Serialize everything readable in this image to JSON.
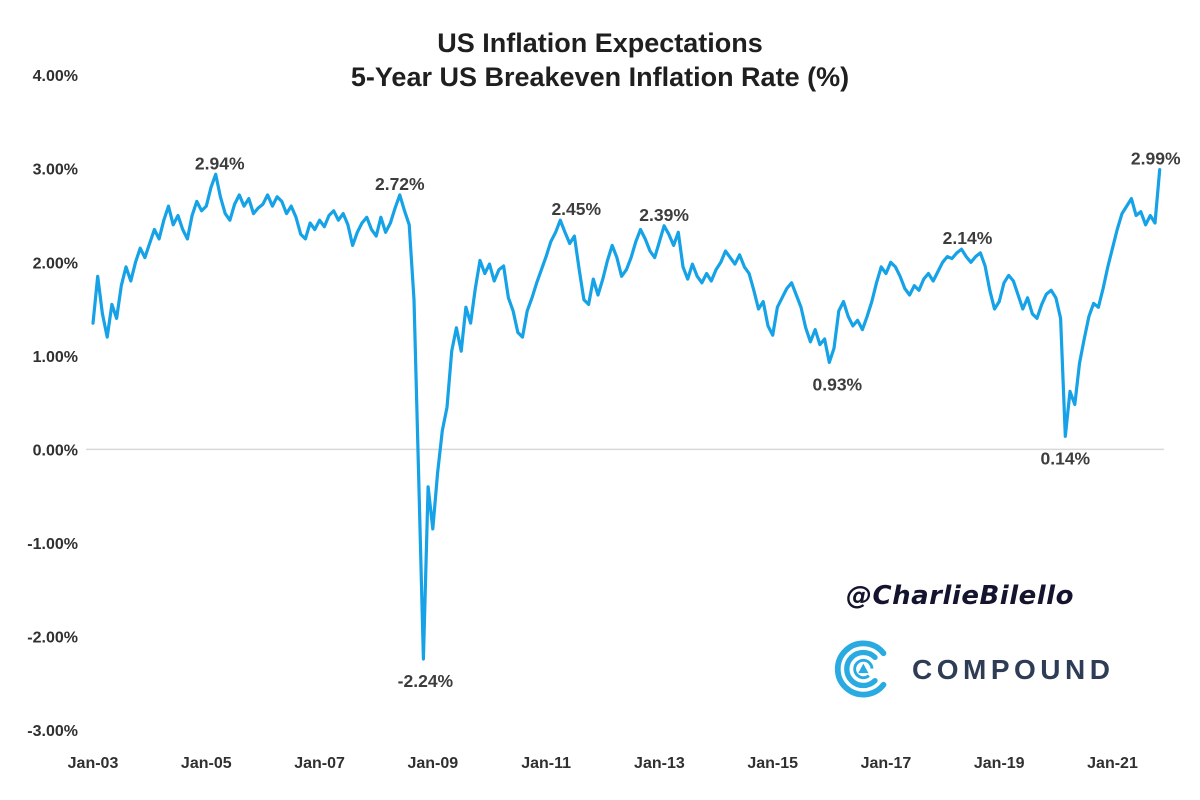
{
  "title": {
    "line1": "US Inflation Expectations",
    "line2": "5-Year US Breakeven Inflation Rate (%)"
  },
  "watermark": "@CharlieBilello",
  "logo": {
    "text": "COMPOUND"
  },
  "colors": {
    "line": "#16a2e6",
    "grid": "#d9d9d9",
    "axis_text": "#303030",
    "annotation_text": "#3d3d3d",
    "title_text": "#1f1f1f",
    "logo_blue": "#29abe2",
    "logo_navy": "#2e3d55",
    "watermark_text": "#14142e"
  },
  "chart_data": {
    "type": "line",
    "title": "US Inflation Expectations",
    "subtitle": "5-Year US Breakeven Inflation Rate (%)",
    "series_name": "5-Year US Breakeven Inflation Rate",
    "x_start": "Jan-2003",
    "x_end": "Nov-2021",
    "x_frequency": "monthly",
    "ylim": [
      -3,
      4
    ],
    "grid": "zero-line-only",
    "legend": "none",
    "x_tick_labels": [
      {
        "label": "Jan-03",
        "month_index": 0
      },
      {
        "label": "Jan-05",
        "month_index": 24
      },
      {
        "label": "Jan-07",
        "month_index": 48
      },
      {
        "label": "Jan-09",
        "month_index": 72
      },
      {
        "label": "Jan-11",
        "month_index": 96
      },
      {
        "label": "Jan-13",
        "month_index": 120
      },
      {
        "label": "Jan-15",
        "month_index": 144
      },
      {
        "label": "Jan-17",
        "month_index": 168
      },
      {
        "label": "Jan-19",
        "month_index": 192
      },
      {
        "label": "Jan-21",
        "month_index": 216
      }
    ],
    "y_ticks": [
      {
        "label": "4.00%",
        "value": 4
      },
      {
        "label": "3.00%",
        "value": 3
      },
      {
        "label": "2.00%",
        "value": 2
      },
      {
        "label": "1.00%",
        "value": 1
      },
      {
        "label": "0.00%",
        "value": 0
      },
      {
        "label": "-1.00%",
        "value": -1
      },
      {
        "label": "-2.00%",
        "value": -2
      },
      {
        "label": "-3.00%",
        "value": -3
      }
    ],
    "values": [
      1.35,
      1.85,
      1.45,
      1.2,
      1.55,
      1.4,
      1.75,
      1.95,
      1.8,
      2.0,
      2.15,
      2.05,
      2.2,
      2.35,
      2.25,
      2.45,
      2.6,
      2.4,
      2.5,
      2.35,
      2.25,
      2.5,
      2.65,
      2.55,
      2.6,
      2.8,
      2.94,
      2.7,
      2.52,
      2.45,
      2.62,
      2.72,
      2.6,
      2.68,
      2.52,
      2.58,
      2.62,
      2.72,
      2.6,
      2.7,
      2.65,
      2.52,
      2.6,
      2.48,
      2.3,
      2.25,
      2.42,
      2.35,
      2.45,
      2.38,
      2.5,
      2.55,
      2.45,
      2.52,
      2.4,
      2.18,
      2.32,
      2.42,
      2.48,
      2.35,
      2.28,
      2.48,
      2.32,
      2.42,
      2.58,
      2.72,
      2.55,
      2.4,
      1.6,
      -0.3,
      -2.24,
      -0.4,
      -0.85,
      -0.25,
      0.2,
      0.45,
      1.05,
      1.3,
      1.05,
      1.52,
      1.35,
      1.72,
      2.02,
      1.88,
      1.98,
      1.8,
      1.92,
      1.96,
      1.62,
      1.48,
      1.25,
      1.2,
      1.48,
      1.62,
      1.78,
      1.92,
      2.06,
      2.22,
      2.32,
      2.45,
      2.32,
      2.2,
      2.28,
      1.92,
      1.6,
      1.55,
      1.82,
      1.65,
      1.82,
      2.02,
      2.18,
      2.05,
      1.85,
      1.92,
      2.05,
      2.22,
      2.35,
      2.25,
      2.12,
      2.05,
      2.22,
      2.39,
      2.3,
      2.18,
      2.32,
      1.95,
      1.82,
      1.98,
      1.85,
      1.78,
      1.88,
      1.8,
      1.92,
      2.0,
      2.12,
      2.05,
      1.98,
      2.08,
      1.95,
      1.88,
      1.7,
      1.5,
      1.58,
      1.32,
      1.22,
      1.52,
      1.62,
      1.72,
      1.78,
      1.65,
      1.52,
      1.3,
      1.15,
      1.28,
      1.12,
      1.18,
      0.93,
      1.08,
      1.48,
      1.58,
      1.42,
      1.32,
      1.38,
      1.28,
      1.42,
      1.58,
      1.78,
      1.95,
      1.88,
      2.0,
      1.95,
      1.85,
      1.72,
      1.65,
      1.75,
      1.7,
      1.82,
      1.88,
      1.8,
      1.9,
      2.0,
      2.06,
      2.04,
      2.1,
      2.14,
      2.06,
      2.0,
      2.06,
      2.1,
      1.96,
      1.7,
      1.5,
      1.58,
      1.78,
      1.86,
      1.8,
      1.65,
      1.5,
      1.62,
      1.45,
      1.4,
      1.55,
      1.66,
      1.7,
      1.62,
      1.4,
      0.14,
      0.62,
      0.48,
      0.92,
      1.18,
      1.42,
      1.56,
      1.52,
      1.72,
      1.95,
      2.15,
      2.35,
      2.52,
      2.6,
      2.68,
      2.5,
      2.54,
      2.4,
      2.5,
      2.42,
      2.99
    ],
    "annotations": [
      {
        "label": "2.94%",
        "month_index": 26,
        "value": 2.94,
        "placement": "above",
        "dx": 4
      },
      {
        "label": "2.72%",
        "month_index": 65,
        "value": 2.72,
        "placement": "above",
        "dx": 0
      },
      {
        "label": "-2.24%",
        "month_index": 70,
        "value": -2.24,
        "placement": "below",
        "dx": 2
      },
      {
        "label": "2.45%",
        "month_index": 99,
        "value": 2.45,
        "placement": "above",
        "dx": 16
      },
      {
        "label": "2.39%",
        "month_index": 121,
        "value": 2.39,
        "placement": "above",
        "dx": 0
      },
      {
        "label": "0.93%",
        "month_index": 156,
        "value": 0.93,
        "placement": "below",
        "dx": 8
      },
      {
        "label": "2.14%",
        "month_index": 184,
        "value": 2.14,
        "placement": "above",
        "dx": 6
      },
      {
        "label": "0.14%",
        "month_index": 206,
        "value": 0.14,
        "placement": "below",
        "dx": 0
      },
      {
        "label": "2.99%",
        "month_index": 226,
        "value": 2.99,
        "placement": "above",
        "dx": -4
      }
    ]
  }
}
